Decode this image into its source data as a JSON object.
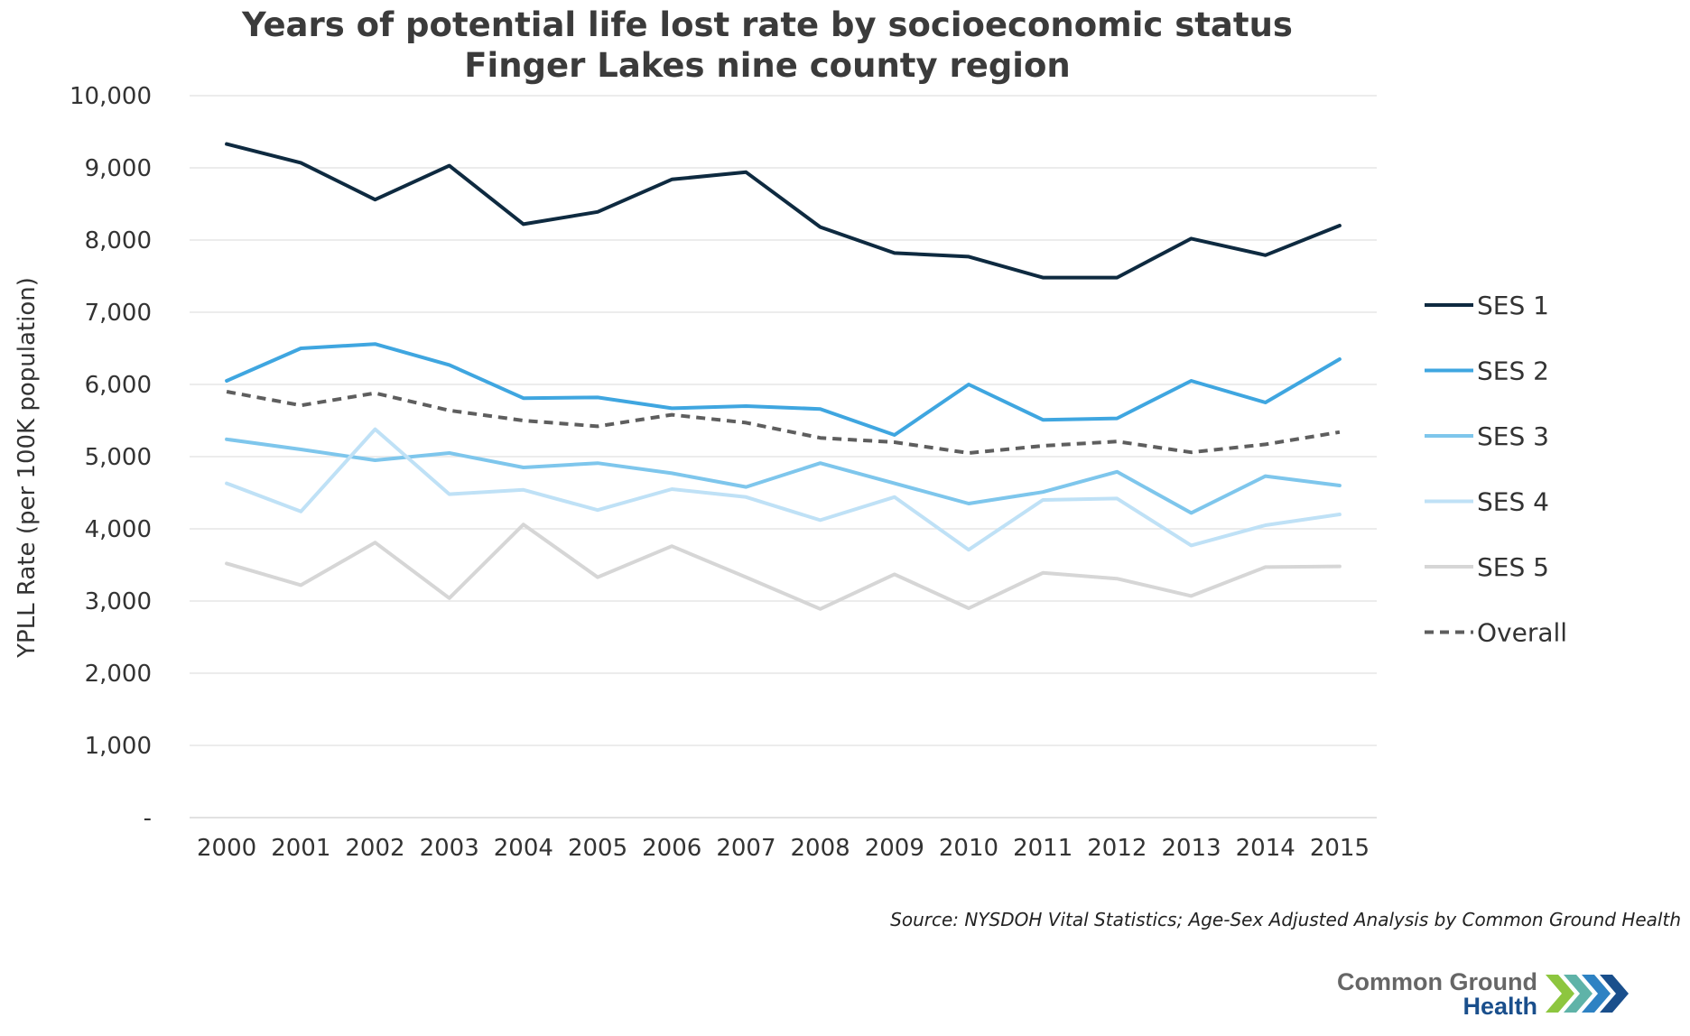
{
  "chart_data": {
    "type": "line",
    "title_lines": [
      "Years of potential life lost rate by socioeconomic status",
      "Finger Lakes nine county region"
    ],
    "xlabel": "",
    "ylabel": "YPLL Rate (per 100K population)",
    "ylim": [
      0,
      10000
    ],
    "y_ticks": [
      0,
      1000,
      2000,
      3000,
      4000,
      5000,
      6000,
      7000,
      8000,
      9000,
      10000
    ],
    "y_tick_labels": [
      "-",
      "1,000",
      "2,000",
      "3,000",
      "4,000",
      "5,000",
      "6,000",
      "7,000",
      "8,000",
      "9,000",
      "10,000"
    ],
    "categories": [
      "2000",
      "2001",
      "2002",
      "2003",
      "2004",
      "2005",
      "2006",
      "2007",
      "2008",
      "2009",
      "2010",
      "2011",
      "2012",
      "2013",
      "2014",
      "2015"
    ],
    "grid": true,
    "legend_position": "right",
    "series": [
      {
        "name": "SES 1",
        "color": "#0e2a40",
        "dashed": false,
        "values": [
          9330,
          9070,
          8560,
          9030,
          8220,
          8390,
          8840,
          8940,
          8180,
          7820,
          7770,
          7480,
          7480,
          8020,
          7790,
          8200
        ]
      },
      {
        "name": "SES 2",
        "color": "#3fa6e0",
        "dashed": false,
        "values": [
          6050,
          6500,
          6560,
          6270,
          5810,
          5820,
          5670,
          5700,
          5660,
          5300,
          6000,
          5510,
          5530,
          6050,
          5750,
          6350
        ]
      },
      {
        "name": "SES 3",
        "color": "#7ec6ec",
        "dashed": false,
        "values": [
          5240,
          5100,
          4950,
          5050,
          4850,
          4910,
          4770,
          4580,
          4910,
          4630,
          4350,
          4510,
          4790,
          4220,
          4730,
          4600
        ]
      },
      {
        "name": "SES 4",
        "color": "#bfe1f6",
        "dashed": false,
        "values": [
          4630,
          4240,
          5380,
          4480,
          4540,
          4260,
          4550,
          4440,
          4120,
          4440,
          3710,
          4400,
          4420,
          3770,
          4050,
          4200
        ]
      },
      {
        "name": "SES 5",
        "color": "#d6d6d6",
        "dashed": false,
        "values": [
          3520,
          3220,
          3810,
          3040,
          4060,
          3330,
          3760,
          3330,
          2890,
          3370,
          2900,
          3390,
          3310,
          3070,
          3470,
          3480
        ]
      },
      {
        "name": "Overall",
        "color": "#5e5e5e",
        "dashed": true,
        "values": [
          5900,
          5710,
          5880,
          5640,
          5500,
          5420,
          5580,
          5470,
          5260,
          5200,
          5050,
          5150,
          5210,
          5060,
          5170,
          5340
        ]
      }
    ]
  },
  "source": "Source: NYSDOH Vital Statistics; Age-Sex Adjusted Analysis by Common Ground Health",
  "logo": {
    "line1": "Common Ground",
    "line2": "Health",
    "colors": [
      "#8dc63f",
      "#5fb3a8",
      "#2e82c3",
      "#1a4f8c"
    ]
  }
}
